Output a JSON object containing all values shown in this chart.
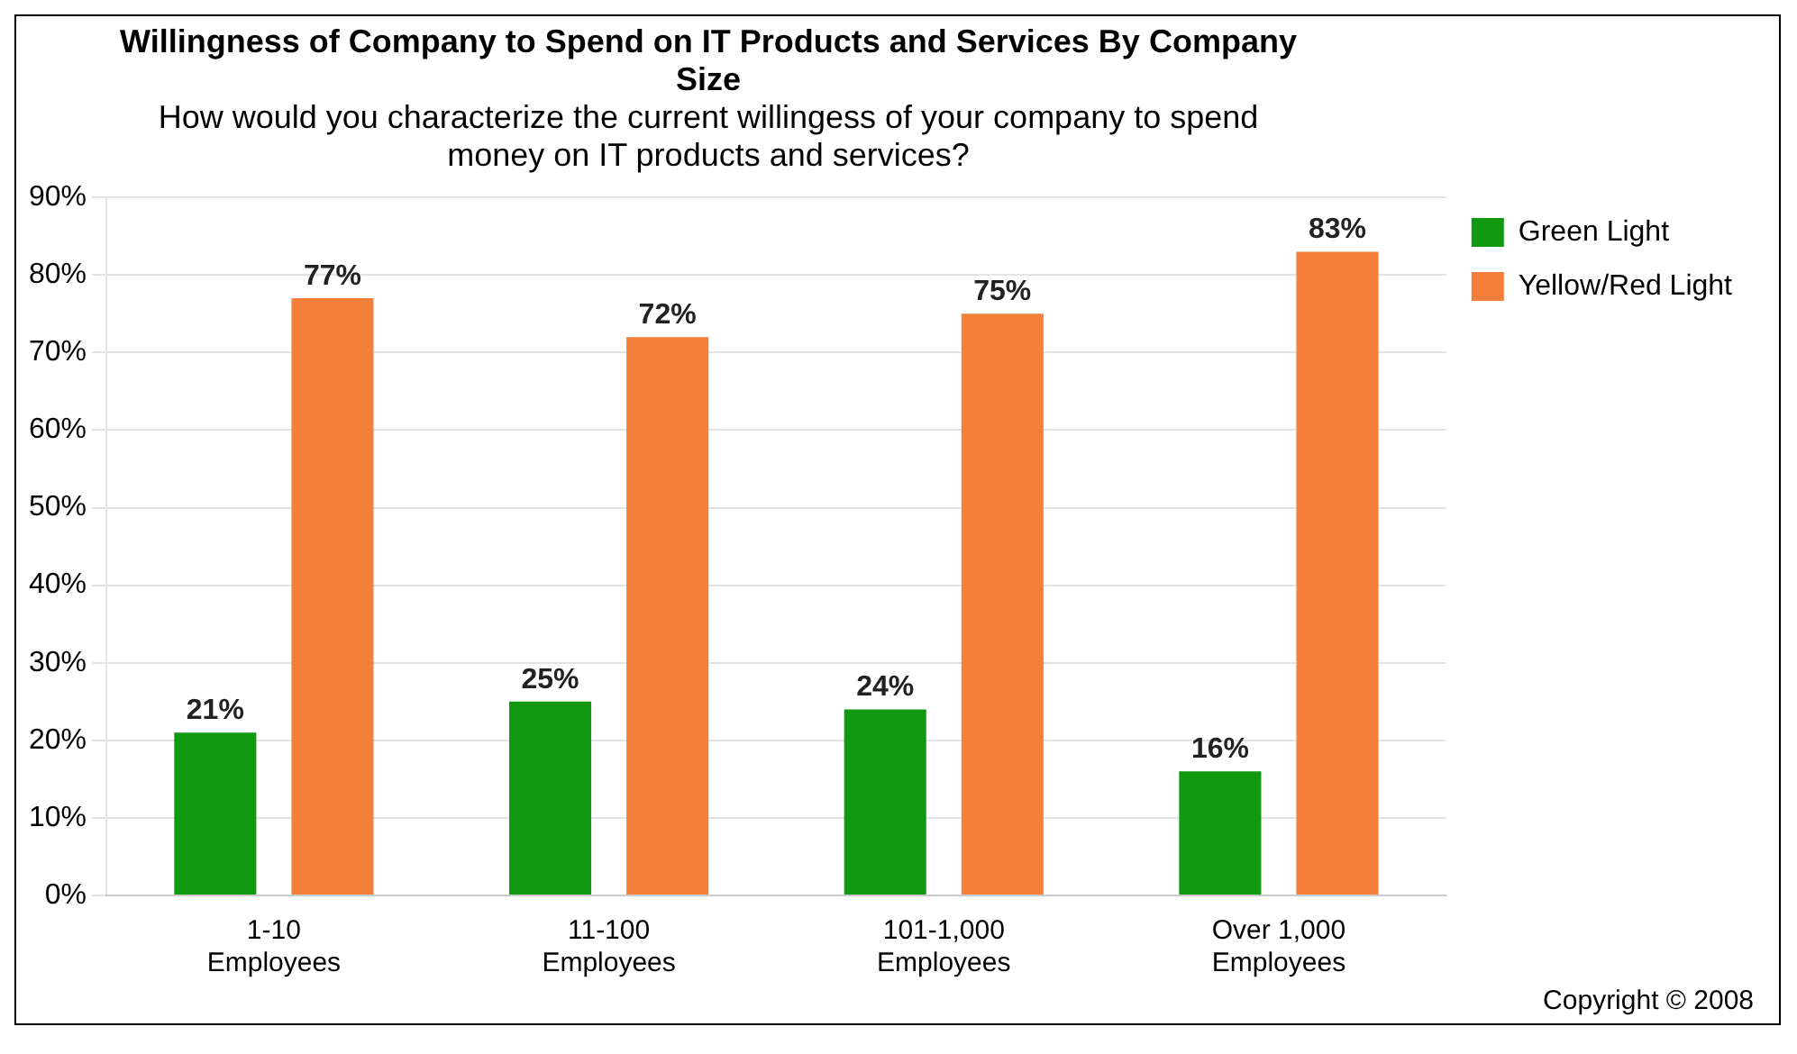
{
  "chart_data": {
    "type": "bar",
    "title": "Willingness of Company to Spend on IT Products and Services By Company Size",
    "subtitle": "How would you characterize the current willingess of your company to spend money on IT products and services?",
    "categories": [
      "1-10\nEmployees",
      "11-100\nEmployees",
      "101-1,000\nEmployees",
      "Over 1,000\nEmployees"
    ],
    "series": [
      {
        "name": "Green Light",
        "color": "#119911",
        "values": [
          21,
          25,
          24,
          16
        ],
        "value_labels": [
          "21%",
          "25%",
          "24%",
          "16%"
        ]
      },
      {
        "name": "Yellow/Red Light",
        "color": "#f47f3a",
        "values": [
          77,
          72,
          75,
          83
        ],
        "value_labels": [
          "77%",
          "72%",
          "75%",
          "83%"
        ]
      }
    ],
    "ylim": [
      0,
      90
    ],
    "yticks": [
      {
        "value": 0,
        "label": "0%"
      },
      {
        "value": 10,
        "label": "10%"
      },
      {
        "value": 20,
        "label": "20%"
      },
      {
        "value": 30,
        "label": "30%"
      },
      {
        "value": 40,
        "label": "40%"
      },
      {
        "value": 50,
        "label": "50%"
      },
      {
        "value": 60,
        "label": "60%"
      },
      {
        "value": 70,
        "label": "70%"
      },
      {
        "value": 80,
        "label": "80%"
      },
      {
        "value": 90,
        "label": "90%"
      }
    ],
    "grid": "y",
    "legend": "top right",
    "annotations": [
      "Copyright © 2008"
    ]
  }
}
